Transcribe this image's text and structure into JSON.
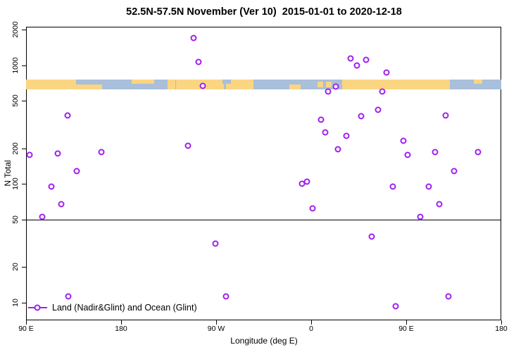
{
  "colors": {
    "point_ring": "#A020F0",
    "land": "#FAD582",
    "ocean": "#A9BFDB",
    "axis": "#000000"
  },
  "chart_data": {
    "type": "scatter",
    "title": "52.5N-57.5N November (Ver 10)  2015-01-01 to 2020-12-18",
    "xlabel": "Longitude (deg E)",
    "ylabel": "N Total",
    "legend_label": "Land (Nadir&Glint) and Ocean (Glint)",
    "y_scale": "log10",
    "ylim": [
      10,
      2000
    ],
    "y_ticks": [
      2000,
      1000,
      500,
      200,
      100,
      50,
      20,
      10
    ],
    "x_axis": {
      "note": "longitude axis starts at 90E and wraps eastward over 450 degrees",
      "span_degrees": 450,
      "ticks": [
        {
          "label": "90 E",
          "deg": 0
        },
        {
          "label": "180",
          "deg": 90
        },
        {
          "label": "90 W",
          "deg": 180
        },
        {
          "label": "0",
          "deg": 270
        },
        {
          "label": "90 E",
          "deg": 360
        },
        {
          "label": "180",
          "deg": 450
        }
      ]
    },
    "ref_line_n": 50,
    "map_band": {
      "n_top": 760,
      "n_bottom": 630,
      "land_segments": [
        {
          "d0": 0,
          "d1": 47.5,
          "v": "full"
        },
        {
          "d0": 47.5,
          "d1": 72,
          "v": "bottom"
        },
        {
          "d0": 100,
          "d1": 121,
          "v": "top"
        },
        {
          "d0": 134,
          "d1": 141.5,
          "v": "full"
        },
        {
          "d0": 142,
          "d1": 187,
          "v": "full"
        },
        {
          "d0": 189,
          "d1": 215,
          "v": "full"
        },
        {
          "d0": 249,
          "d1": 260,
          "v": "bottom"
        },
        {
          "d0": 276,
          "d1": 281,
          "v": "mid"
        },
        {
          "d0": 284,
          "d1": 289,
          "v": "mid"
        },
        {
          "d0": 299,
          "d1": 401,
          "v": "full"
        },
        {
          "d0": 424,
          "d1": 432,
          "v": "top"
        }
      ],
      "ocean_notches": [
        {
          "d0": 58,
          "d1": 66,
          "v": "top"
        },
        {
          "d0": 186,
          "d1": 194,
          "v": "top"
        }
      ]
    },
    "points": [
      {
        "ax": 3,
        "n": 175
      },
      {
        "ax": 15,
        "n": 53
      },
      {
        "ax": 24,
        "n": 95
      },
      {
        "ax": 30,
        "n": 180
      },
      {
        "ax": 33,
        "n": 68
      },
      {
        "ax": 39,
        "n": 380
      },
      {
        "ax": 40,
        "n": 11.3
      },
      {
        "ax": 48,
        "n": 128
      },
      {
        "ax": 71,
        "n": 185
      },
      {
        "ax": 153,
        "n": 210
      },
      {
        "ax": 158.5,
        "n": 1700
      },
      {
        "ax": 163,
        "n": 1060
      },
      {
        "ax": 167,
        "n": 670
      },
      {
        "ax": 179,
        "n": 31.5
      },
      {
        "ax": 189,
        "n": 11.3
      },
      {
        "ax": 261,
        "n": 100
      },
      {
        "ax": 266,
        "n": 105
      },
      {
        "ax": 271,
        "n": 62
      },
      {
        "ax": 279,
        "n": 350
      },
      {
        "ax": 283,
        "n": 272
      },
      {
        "ax": 286,
        "n": 600
      },
      {
        "ax": 293,
        "n": 665
      },
      {
        "ax": 295,
        "n": 195
      },
      {
        "ax": 303,
        "n": 255
      },
      {
        "ax": 307,
        "n": 1140
      },
      {
        "ax": 313,
        "n": 1000
      },
      {
        "ax": 317,
        "n": 375
      },
      {
        "ax": 322,
        "n": 1110
      },
      {
        "ax": 327,
        "n": 36
      },
      {
        "ax": 333,
        "n": 420
      },
      {
        "ax": 337,
        "n": 600
      },
      {
        "ax": 341,
        "n": 870
      },
      {
        "ax": 347,
        "n": 95
      },
      {
        "ax": 350,
        "n": 9.3
      },
      {
        "ax": 357,
        "n": 230
      },
      {
        "ax": 361,
        "n": 175
      },
      {
        "ax": 373,
        "n": 53
      },
      {
        "ax": 381,
        "n": 95
      },
      {
        "ax": 387,
        "n": 185
      },
      {
        "ax": 391,
        "n": 68
      },
      {
        "ax": 397,
        "n": 380
      },
      {
        "ax": 400,
        "n": 11.3
      },
      {
        "ax": 405,
        "n": 128
      },
      {
        "ax": 428,
        "n": 185
      }
    ]
  }
}
